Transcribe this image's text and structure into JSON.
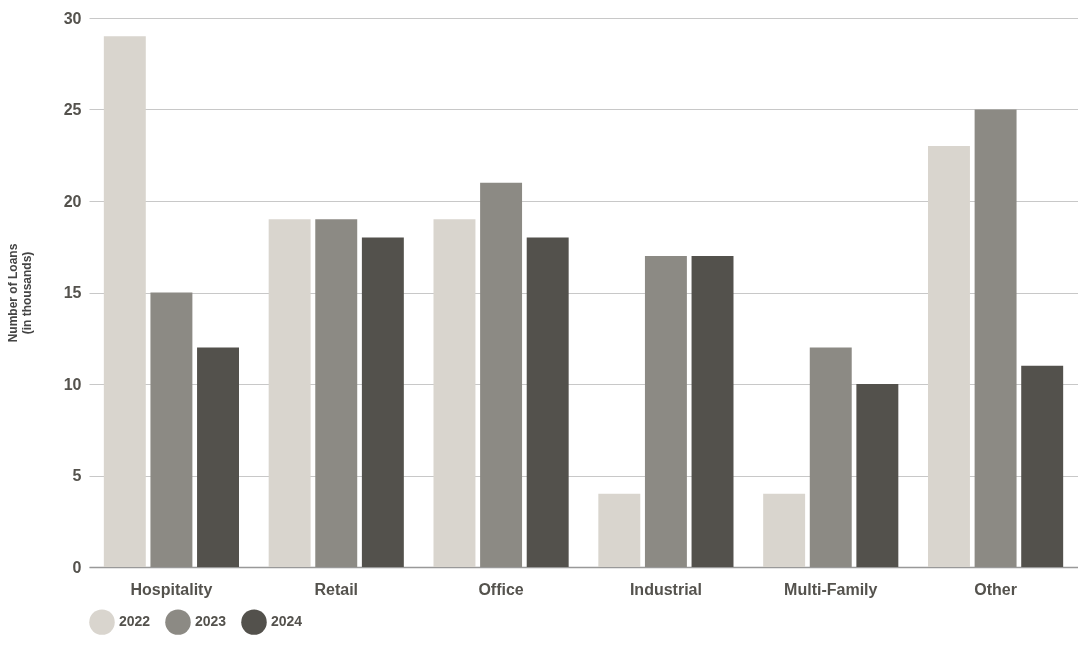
{
  "chart_data": {
    "type": "bar",
    "ylabel": "Number of Loans\n(in thousands)",
    "categories": [
      "Hospitality",
      "Retail",
      "Office",
      "Industrial",
      "Multi-Family",
      "Other"
    ],
    "series": [
      {
        "name": "2022",
        "color": "#d9d5ce",
        "values": [
          29,
          19,
          19,
          4,
          4,
          23
        ]
      },
      {
        "name": "2023",
        "color": "#8c8a84",
        "values": [
          15,
          19,
          21,
          17,
          12,
          25
        ]
      },
      {
        "name": "2024",
        "color": "#53514c",
        "values": [
          12,
          18,
          18,
          17,
          10,
          11
        ]
      }
    ],
    "ylim": [
      0,
      30
    ],
    "yticks": [
      0,
      5,
      10,
      15,
      20,
      25,
      30
    ],
    "grid": "y",
    "legend": "bottom"
  }
}
